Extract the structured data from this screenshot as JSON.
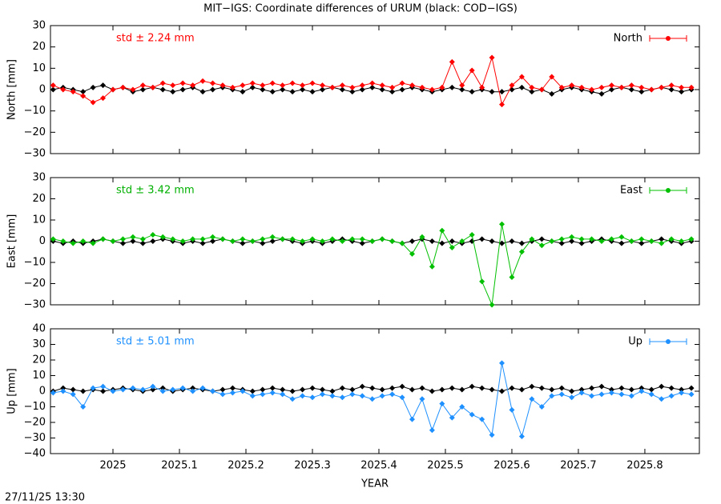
{
  "title": "MIT−IGS: Coordinate differences of URUM (black: COD−IGS)",
  "timestamp": "27/11/25 13:30",
  "chart_data": [
    {
      "type": "line",
      "ylabel": "North [mm]",
      "annotation": "std ± 2.24 mm",
      "annotation_color": "#ff0000",
      "xlim": [
        2024.906,
        2025.882
      ],
      "xticks": [
        2025,
        2025.1,
        2025.2,
        2025.3,
        2025.4,
        2025.5,
        2025.6,
        2025.7,
        2025.8
      ],
      "ylim": [
        -30,
        30
      ],
      "yticks": [
        {
          "value": -30,
          "label": "−30"
        },
        {
          "value": -20,
          "label": "−20"
        },
        {
          "value": -10,
          "label": "−10"
        },
        0,
        10,
        20,
        30
      ],
      "x": [
        2024.91,
        2024.925,
        2024.94,
        2024.955,
        2024.97,
        2024.985,
        2025.0,
        2025.015,
        2025.03,
        2025.045,
        2025.06,
        2025.075,
        2025.09,
        2025.105,
        2025.12,
        2025.135,
        2025.15,
        2025.165,
        2025.18,
        2025.195,
        2025.21,
        2025.225,
        2025.24,
        2025.255,
        2025.27,
        2025.285,
        2025.3,
        2025.315,
        2025.33,
        2025.345,
        2025.36,
        2025.375,
        2025.39,
        2025.405,
        2025.42,
        2025.435,
        2025.45,
        2025.465,
        2025.48,
        2025.495,
        2025.51,
        2025.525,
        2025.54,
        2025.555,
        2025.57,
        2025.585,
        2025.6,
        2025.615,
        2025.63,
        2025.645,
        2025.66,
        2025.675,
        2025.69,
        2025.705,
        2025.72,
        2025.735,
        2025.75,
        2025.765,
        2025.78,
        2025.795,
        2025.81,
        2025.825,
        2025.84,
        2025.855,
        2025.87
      ],
      "series": [
        {
          "color": "#000000",
          "values": [
            0,
            1,
            0,
            -1,
            1,
            2,
            0,
            1,
            -1,
            0,
            1,
            0,
            -1,
            0,
            1,
            -1,
            0,
            1,
            0,
            -1,
            1,
            0,
            -1,
            0,
            -1,
            0,
            -1,
            0,
            1,
            0,
            -1,
            0,
            1,
            0,
            -1,
            0,
            1,
            0,
            -1,
            0,
            1,
            0,
            -1,
            0,
            -1,
            -1,
            0,
            1,
            -1,
            0,
            -2,
            0,
            1,
            0,
            -1,
            -2,
            0,
            1,
            0,
            -1,
            0,
            1,
            0,
            -1,
            0
          ]
        },
        {
          "name": "North",
          "color": "#ff0000",
          "values": [
            2,
            0,
            -1,
            -3,
            -6,
            -4,
            0,
            1,
            0,
            2,
            1,
            3,
            2,
            3,
            2,
            4,
            3,
            2,
            1,
            2,
            3,
            2,
            3,
            2,
            3,
            2,
            3,
            2,
            1,
            2,
            1,
            2,
            3,
            2,
            1,
            3,
            2,
            1,
            0,
            1,
            13,
            2,
            9,
            1,
            15,
            -7,
            2,
            6,
            1,
            0,
            6,
            1,
            2,
            1,
            0,
            1,
            2,
            1,
            2,
            1,
            0,
            1,
            2,
            1,
            1
          ]
        }
      ]
    },
    {
      "type": "line",
      "ylabel": "East [mm]",
      "annotation": "std ± 3.42 mm",
      "annotation_color": "#00b000",
      "xlim": [
        2024.906,
        2025.882
      ],
      "xticks": [
        2025,
        2025.1,
        2025.2,
        2025.3,
        2025.4,
        2025.5,
        2025.6,
        2025.7,
        2025.8
      ],
      "ylim": [
        -30,
        30
      ],
      "yticks": [
        {
          "value": -30,
          "label": "−30"
        },
        {
          "value": -20,
          "label": "−20"
        },
        {
          "value": -10,
          "label": "−10"
        },
        0,
        10,
        20,
        30
      ],
      "x": [
        2024.91,
        2024.925,
        2024.94,
        2024.955,
        2024.97,
        2024.985,
        2025.0,
        2025.015,
        2025.03,
        2025.045,
        2025.06,
        2025.075,
        2025.09,
        2025.105,
        2025.12,
        2025.135,
        2025.15,
        2025.165,
        2025.18,
        2025.195,
        2025.21,
        2025.225,
        2025.24,
        2025.255,
        2025.27,
        2025.285,
        2025.3,
        2025.315,
        2025.33,
        2025.345,
        2025.36,
        2025.375,
        2025.39,
        2025.405,
        2025.42,
        2025.435,
        2025.45,
        2025.465,
        2025.48,
        2025.495,
        2025.51,
        2025.525,
        2025.54,
        2025.555,
        2025.57,
        2025.585,
        2025.6,
        2025.615,
        2025.63,
        2025.645,
        2025.66,
        2025.675,
        2025.69,
        2025.705,
        2025.72,
        2025.735,
        2025.75,
        2025.765,
        2025.78,
        2025.795,
        2025.81,
        2025.825,
        2025.84,
        2025.855,
        2025.87
      ],
      "series": [
        {
          "color": "#000000",
          "values": [
            0,
            -1,
            0,
            -1,
            0,
            1,
            0,
            -1,
            0,
            -1,
            0,
            1,
            0,
            -1,
            0,
            -1,
            0,
            1,
            0,
            -1,
            0,
            -1,
            0,
            1,
            0,
            -1,
            0,
            -1,
            0,
            1,
            0,
            -1,
            0,
            1,
            0,
            -1,
            0,
            1,
            0,
            -1,
            0,
            -1,
            0,
            1,
            0,
            -1,
            0,
            -1,
            0,
            1,
            0,
            -1,
            0,
            -1,
            0,
            1,
            0,
            -1,
            0,
            -1,
            0,
            1,
            0,
            -1,
            0
          ]
        },
        {
          "name": "East",
          "color": "#00c000",
          "values": [
            1,
            0,
            -1,
            0,
            -1,
            1,
            0,
            1,
            2,
            1,
            3,
            2,
            1,
            0,
            1,
            1,
            2,
            1,
            0,
            1,
            0,
            1,
            2,
            1,
            1,
            0,
            1,
            0,
            1,
            0,
            1,
            1,
            0,
            1,
            0,
            -1,
            -6,
            2,
            -12,
            5,
            -3,
            0,
            3,
            -19,
            -30,
            8,
            -17,
            -5,
            1,
            -2,
            0,
            1,
            2,
            1,
            1,
            0,
            1,
            2,
            0,
            1,
            0,
            -1,
            1,
            0,
            1
          ]
        }
      ]
    },
    {
      "type": "line",
      "ylabel": "Up [mm]",
      "xlabel": "YEAR",
      "annotation": "std ± 5.01 mm",
      "annotation_color": "#1e90ff",
      "xlim": [
        2024.906,
        2025.882
      ],
      "xticks": [
        2025,
        2025.1,
        2025.2,
        2025.3,
        2025.4,
        2025.5,
        2025.6,
        2025.7,
        2025.8
      ],
      "xtick_labels": true,
      "ylim": [
        -40,
        40
      ],
      "yticks": [
        {
          "value": -40,
          "label": "−40"
        },
        {
          "value": -30,
          "label": "−30"
        },
        {
          "value": -20,
          "label": "−20"
        },
        {
          "value": -10,
          "label": "−10"
        },
        0,
        10,
        20,
        30,
        40
      ],
      "x": [
        2024.91,
        2024.925,
        2024.94,
        2024.955,
        2024.97,
        2024.985,
        2025.0,
        2025.015,
        2025.03,
        2025.045,
        2025.06,
        2025.075,
        2025.09,
        2025.105,
        2025.12,
        2025.135,
        2025.15,
        2025.165,
        2025.18,
        2025.195,
        2025.21,
        2025.225,
        2025.24,
        2025.255,
        2025.27,
        2025.285,
        2025.3,
        2025.315,
        2025.33,
        2025.345,
        2025.36,
        2025.375,
        2025.39,
        2025.405,
        2025.42,
        2025.435,
        2025.45,
        2025.465,
        2025.48,
        2025.495,
        2025.51,
        2025.525,
        2025.54,
        2025.555,
        2025.57,
        2025.585,
        2025.6,
        2025.615,
        2025.63,
        2025.645,
        2025.66,
        2025.675,
        2025.69,
        2025.705,
        2025.72,
        2025.735,
        2025.75,
        2025.765,
        2025.78,
        2025.795,
        2025.81,
        2025.825,
        2025.84,
        2025.855,
        2025.87
      ],
      "series": [
        {
          "color": "#000000",
          "values": [
            0,
            2,
            1,
            0,
            1,
            0,
            1,
            2,
            1,
            0,
            1,
            2,
            0,
            1,
            2,
            1,
            0,
            1,
            2,
            1,
            0,
            1,
            2,
            1,
            0,
            1,
            2,
            1,
            0,
            2,
            1,
            3,
            2,
            1,
            2,
            3,
            1,
            2,
            0,
            1,
            2,
            1,
            3,
            2,
            1,
            0,
            2,
            1,
            3,
            2,
            1,
            2,
            0,
            1,
            2,
            3,
            1,
            2,
            1,
            2,
            1,
            3,
            2,
            1,
            2
          ]
        },
        {
          "name": "Up",
          "color": "#1e90ff",
          "values": [
            -1,
            0,
            -2,
            -10,
            2,
            3,
            0,
            1,
            2,
            1,
            3,
            0,
            1,
            2,
            0,
            2,
            0,
            -2,
            -1,
            0,
            -3,
            -2,
            -1,
            -2,
            -5,
            -3,
            -4,
            -2,
            -3,
            -4,
            -2,
            -3,
            -5,
            -3,
            -2,
            -4,
            -18,
            -5,
            -25,
            -8,
            -17,
            -10,
            -15,
            -18,
            -28,
            18,
            -12,
            -29,
            -5,
            -10,
            -3,
            -2,
            -4,
            -1,
            -3,
            -2,
            -1,
            -2,
            -3,
            0,
            -2,
            -5,
            -3,
            -1,
            -2
          ]
        }
      ]
    }
  ]
}
